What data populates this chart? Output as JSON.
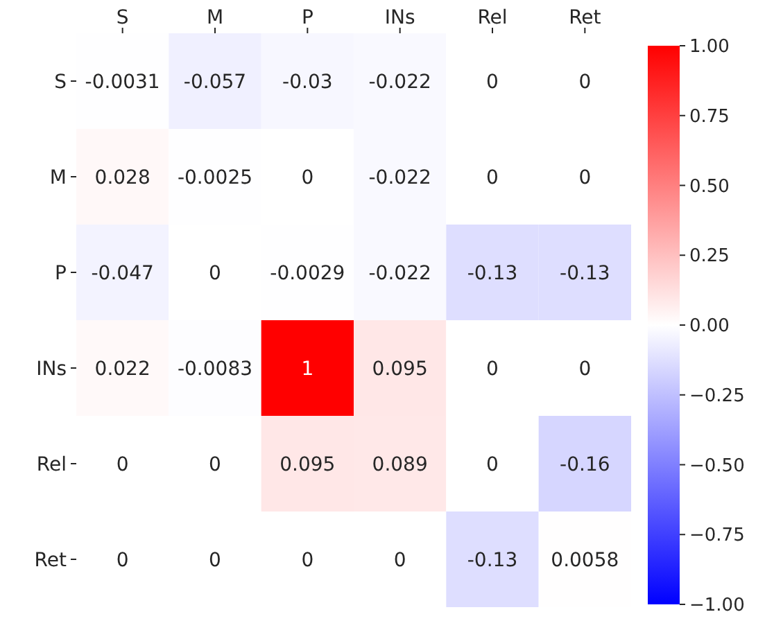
{
  "chart_data": {
    "type": "heatmap",
    "categories": [
      "S",
      "M",
      "P",
      "INs",
      "Rel",
      "Ret"
    ],
    "y_categories": [
      "S",
      "M",
      "P",
      "INs",
      "Rel",
      "Ret"
    ],
    "cells": [
      [
        -0.0031,
        -0.057,
        -0.03,
        -0.022,
        0,
        0
      ],
      [
        0.028,
        -0.0025,
        0,
        -0.022,
        0,
        0
      ],
      [
        -0.047,
        0,
        -0.0029,
        -0.022,
        -0.13,
        -0.13
      ],
      [
        0.022,
        -0.0083,
        1,
        0.095,
        0,
        0
      ],
      [
        0,
        0,
        0.095,
        0.089,
        0,
        -0.16
      ],
      [
        0,
        0,
        0,
        0,
        -0.13,
        0.0058
      ]
    ],
    "data_labels": true,
    "clim": [
      -1,
      1
    ],
    "cticks": [
      {
        "value": 1,
        "label": "1.00"
      },
      {
        "value": 0.75,
        "label": "0.75"
      },
      {
        "value": 0.5,
        "label": "0.50"
      },
      {
        "value": 0.25,
        "label": "0.25"
      },
      {
        "value": 0,
        "label": "0.00"
      },
      {
        "value": -0.25,
        "label": "−0.25"
      },
      {
        "value": -0.5,
        "label": "−0.50"
      },
      {
        "value": -0.75,
        "label": "−0.75"
      },
      {
        "value": -1,
        "label": "−1.00"
      }
    ]
  }
}
